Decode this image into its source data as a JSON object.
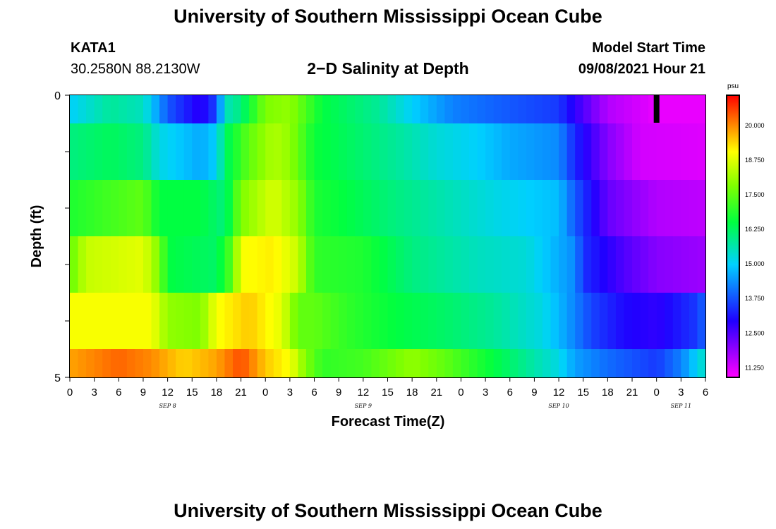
{
  "header": {
    "title": "University of Southern Mississippi Ocean Cube",
    "station_id": "KATA1",
    "station_coords": "30.2580N  88.2130W",
    "plot_title": "2−D Salinity at Depth",
    "model_start_label": "Model Start Time",
    "model_start_value": "09/08/2021 Hour 21"
  },
  "footer": {
    "title": "University of Southern Mississippi Ocean Cube"
  },
  "chart_data": {
    "type": "heatmap",
    "title": "2−D Salinity at Depth",
    "xlabel": "Forecast Time(Z)",
    "ylabel": "Depth (ft)",
    "ylim": [
      0,
      5
    ],
    "y_ticks": [
      "0",
      "5"
    ],
    "x_tick_labels": [
      "0",
      "3",
      "6",
      "9",
      "12",
      "15",
      "18",
      "21",
      "0",
      "3",
      "6",
      "9",
      "12",
      "15",
      "18",
      "21",
      "0",
      "3",
      "6",
      "9",
      "12",
      "15",
      "18",
      "21",
      "0",
      "3",
      "6"
    ],
    "date_labels": [
      {
        "label": "SEP 8",
        "tick_index": 4
      },
      {
        "label": "SEP 9",
        "tick_index": 12
      },
      {
        "label": "SEP 10",
        "tick_index": 20
      },
      {
        "label": "SEP 11",
        "tick_index": 25
      }
    ],
    "x_range_hours": [
      0,
      78
    ],
    "model_start_marker_hour": 72,
    "colorbar": {
      "unit": "psu",
      "range": [
        10.9,
        21.1
      ],
      "tick_labels": [
        "20.000",
        "18.750",
        "17.500",
        "16.250",
        "15.000",
        "13.750",
        "12.500",
        "11.250"
      ]
    },
    "depth_rows": [
      {
        "label": "row 1",
        "keys": [
          [
            0,
            15
          ],
          [
            5,
            15.8
          ],
          [
            9,
            15.5
          ],
          [
            12,
            13.8
          ],
          [
            16,
            12.8
          ],
          [
            18,
            13.6
          ],
          [
            19,
            15.5
          ],
          [
            21,
            16.0
          ],
          [
            24,
            17.8
          ],
          [
            27,
            18.0
          ],
          [
            31,
            16.5
          ],
          [
            34,
            16.2
          ],
          [
            38,
            15.8
          ],
          [
            42,
            15.0
          ],
          [
            47,
            14.2
          ],
          [
            54,
            13.8
          ],
          [
            60,
            13.5
          ],
          [
            62,
            12.8
          ],
          [
            66,
            11.6
          ],
          [
            72,
            11.1
          ],
          [
            78,
            11.1
          ]
        ]
      },
      {
        "label": "row 2",
        "keys": [
          [
            0,
            16.0
          ],
          [
            5,
            16.3
          ],
          [
            9,
            16.0
          ],
          [
            11,
            15.2
          ],
          [
            16,
            14.6
          ],
          [
            18,
            15.0
          ],
          [
            19,
            16.2
          ],
          [
            22,
            17.5
          ],
          [
            25,
            18.3
          ],
          [
            27,
            18.0
          ],
          [
            30,
            16.6
          ],
          [
            35,
            16.2
          ],
          [
            40,
            15.8
          ],
          [
            45,
            15.3
          ],
          [
            50,
            15.0
          ],
          [
            54,
            14.6
          ],
          [
            60,
            14.3
          ],
          [
            62,
            13.3
          ],
          [
            66,
            12.0
          ],
          [
            70,
            11.3
          ],
          [
            78,
            11.2
          ]
        ]
      },
      {
        "label": "row 3",
        "keys": [
          [
            0,
            16.8
          ],
          [
            5,
            17.2
          ],
          [
            9,
            17.5
          ],
          [
            11,
            16.5
          ],
          [
            16,
            16.5
          ],
          [
            19,
            16.0
          ],
          [
            21,
            17.8
          ],
          [
            25,
            18.7
          ],
          [
            28,
            18.0
          ],
          [
            30,
            16.8
          ],
          [
            35,
            16.4
          ],
          [
            40,
            16.0
          ],
          [
            46,
            15.6
          ],
          [
            52,
            15.2
          ],
          [
            60,
            14.8
          ],
          [
            62,
            13.8
          ],
          [
            66,
            12.3
          ],
          [
            72,
            11.6
          ],
          [
            78,
            11.5
          ]
        ]
      },
      {
        "label": "row 4",
        "keys": [
          [
            0,
            17.5
          ],
          [
            2,
            18.5
          ],
          [
            9,
            18.8
          ],
          [
            11,
            17.8
          ],
          [
            12,
            16.5
          ],
          [
            18,
            16.2
          ],
          [
            20,
            17.5
          ],
          [
            21,
            19.0
          ],
          [
            25,
            19.2
          ],
          [
            28,
            18.5
          ],
          [
            30,
            17.0
          ],
          [
            36,
            16.8
          ],
          [
            42,
            16.0
          ],
          [
            50,
            15.5
          ],
          [
            56,
            15.3
          ],
          [
            62,
            14.3
          ],
          [
            63,
            13.4
          ],
          [
            68,
            12.5
          ],
          [
            72,
            12.0
          ],
          [
            78,
            11.8
          ]
        ]
      },
      {
        "label": "row 5",
        "keys": [
          [
            0,
            19.0
          ],
          [
            10,
            19.0
          ],
          [
            12,
            18.0
          ],
          [
            16,
            17.8
          ],
          [
            18,
            19.0
          ],
          [
            22,
            19.5
          ],
          [
            26,
            18.8
          ],
          [
            28,
            17.5
          ],
          [
            30,
            17.5
          ],
          [
            34,
            17.0
          ],
          [
            40,
            16.5
          ],
          [
            46,
            16.2
          ],
          [
            52,
            15.8
          ],
          [
            58,
            15.2
          ],
          [
            61,
            14.5
          ],
          [
            64,
            13.6
          ],
          [
            68,
            13.0
          ],
          [
            72,
            12.8
          ],
          [
            77,
            13.5
          ],
          [
            78,
            14.0
          ]
        ]
      },
      {
        "label": "row 6",
        "keys": [
          [
            0,
            19.8
          ],
          [
            6,
            20.3
          ],
          [
            10,
            20.0
          ],
          [
            14,
            19.4
          ],
          [
            18,
            19.8
          ],
          [
            21,
            20.5
          ],
          [
            24,
            19.5
          ],
          [
            27,
            19.0
          ],
          [
            29,
            17.8
          ],
          [
            31,
            17.0
          ],
          [
            36,
            17.2
          ],
          [
            42,
            18.0
          ],
          [
            46,
            17.5
          ],
          [
            52,
            16.5
          ],
          [
            58,
            15.5
          ],
          [
            60,
            15.2
          ],
          [
            62,
            14.5
          ],
          [
            66,
            14.0
          ],
          [
            72,
            13.5
          ],
          [
            75,
            14.2
          ],
          [
            78,
            15.5
          ]
        ]
      }
    ]
  }
}
